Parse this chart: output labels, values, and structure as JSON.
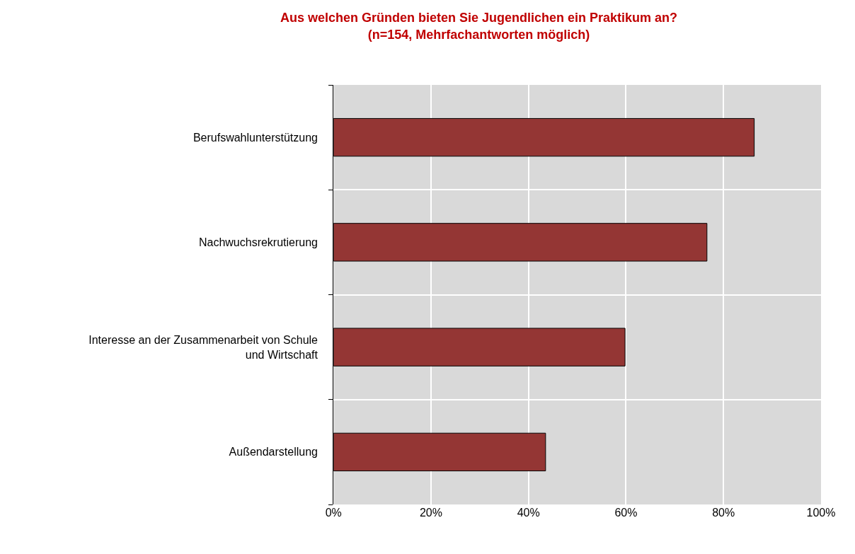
{
  "chart_data": {
    "type": "bar",
    "orientation": "horizontal",
    "title": "Aus welchen Gründen bieten Sie Jugendlichen ein Praktikum an?\n(n=154, Mehrfachantworten möglich)",
    "categories": [
      "Berufswahlunterstützung",
      "Nachwuchsrekrutierung",
      "Interesse an der Zusammenarbeit von Schule und Wirtschaft",
      "Außendarstellung"
    ],
    "values": [
      86.3,
      76.6,
      59.8,
      43.5
    ],
    "color": "#943634",
    "xlim": [
      0,
      100
    ],
    "xticks": [
      {
        "value": 0,
        "label": "0%"
      },
      {
        "value": 20,
        "label": "20%"
      },
      {
        "value": 40,
        "label": "40%"
      },
      {
        "value": 60,
        "label": "60%"
      },
      {
        "value": 80,
        "label": "80%"
      },
      {
        "value": 100,
        "label": "100%"
      }
    ],
    "grid": true
  }
}
